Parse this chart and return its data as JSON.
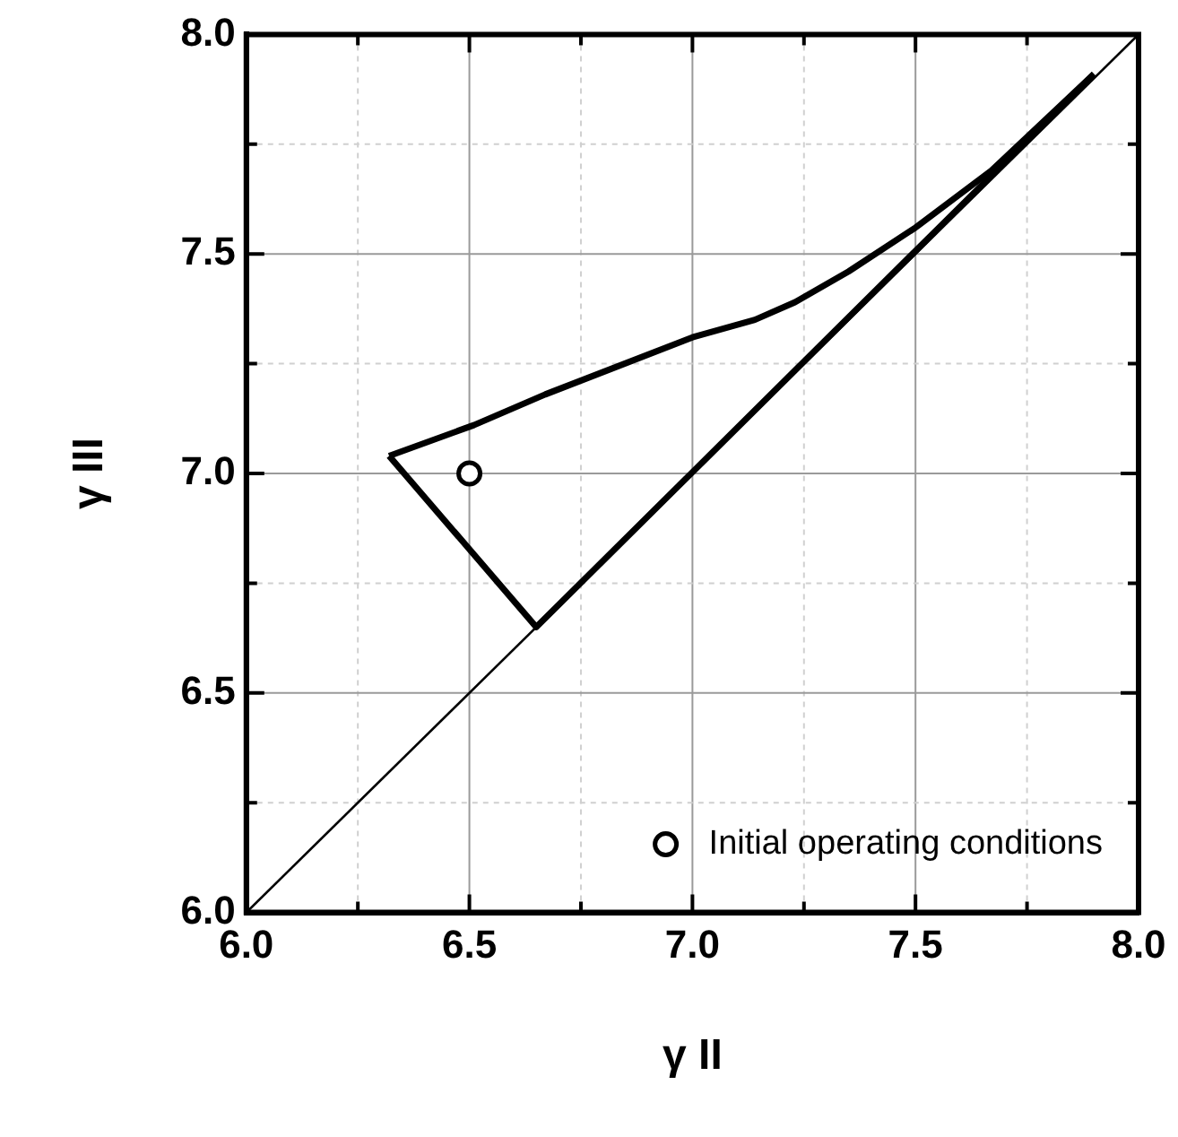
{
  "chart_data": {
    "type": "line",
    "xlabel": "γ II",
    "ylabel": "γ III",
    "xlim": [
      6.0,
      8.0
    ],
    "ylim": [
      6.0,
      8.0
    ],
    "xticks": [
      {
        "value": 6.0,
        "label": "6.0"
      },
      {
        "value": 6.25,
        "label": null
      },
      {
        "value": 6.5,
        "label": "6.5"
      },
      {
        "value": 6.75,
        "label": null
      },
      {
        "value": 7.0,
        "label": "7.0"
      },
      {
        "value": 7.25,
        "label": null
      },
      {
        "value": 7.5,
        "label": "7.5"
      },
      {
        "value": 7.75,
        "label": null
      },
      {
        "value": 8.0,
        "label": "8.0"
      }
    ],
    "yticks": [
      {
        "value": 6.0,
        "label": "6.0"
      },
      {
        "value": 6.25,
        "label": null
      },
      {
        "value": 6.5,
        "label": "6.5"
      },
      {
        "value": 6.75,
        "label": null
      },
      {
        "value": 7.0,
        "label": "7.0"
      },
      {
        "value": 7.25,
        "label": null
      },
      {
        "value": 7.5,
        "label": "7.5"
      },
      {
        "value": 7.75,
        "label": null
      },
      {
        "value": 8.0,
        "label": "8.0"
      }
    ],
    "grid": true,
    "legend": "bottom right",
    "series": [
      {
        "color": "#000000",
        "x": [
          6.0,
          8.0
        ],
        "values": [
          6.0,
          8.0
        ]
      },
      {
        "color": "#000000",
        "x": [
          6.32,
          6.51,
          6.67,
          7.0,
          7.14,
          7.23,
          7.35,
          7.5,
          7.67,
          7.9
        ],
        "values": [
          7.04,
          7.11,
          7.18,
          7.31,
          7.35,
          7.39,
          7.46,
          7.56,
          7.69,
          7.91
        ]
      },
      {
        "color": "#000000",
        "x": [
          6.32,
          6.65,
          7.9
        ],
        "values": [
          7.04,
          6.65,
          7.91
        ]
      },
      {
        "type": "scatter",
        "name": "Initial operating conditions",
        "color": "#000000",
        "marker": "circle",
        "x": [
          6.5
        ],
        "values": [
          7.0
        ]
      }
    ]
  }
}
